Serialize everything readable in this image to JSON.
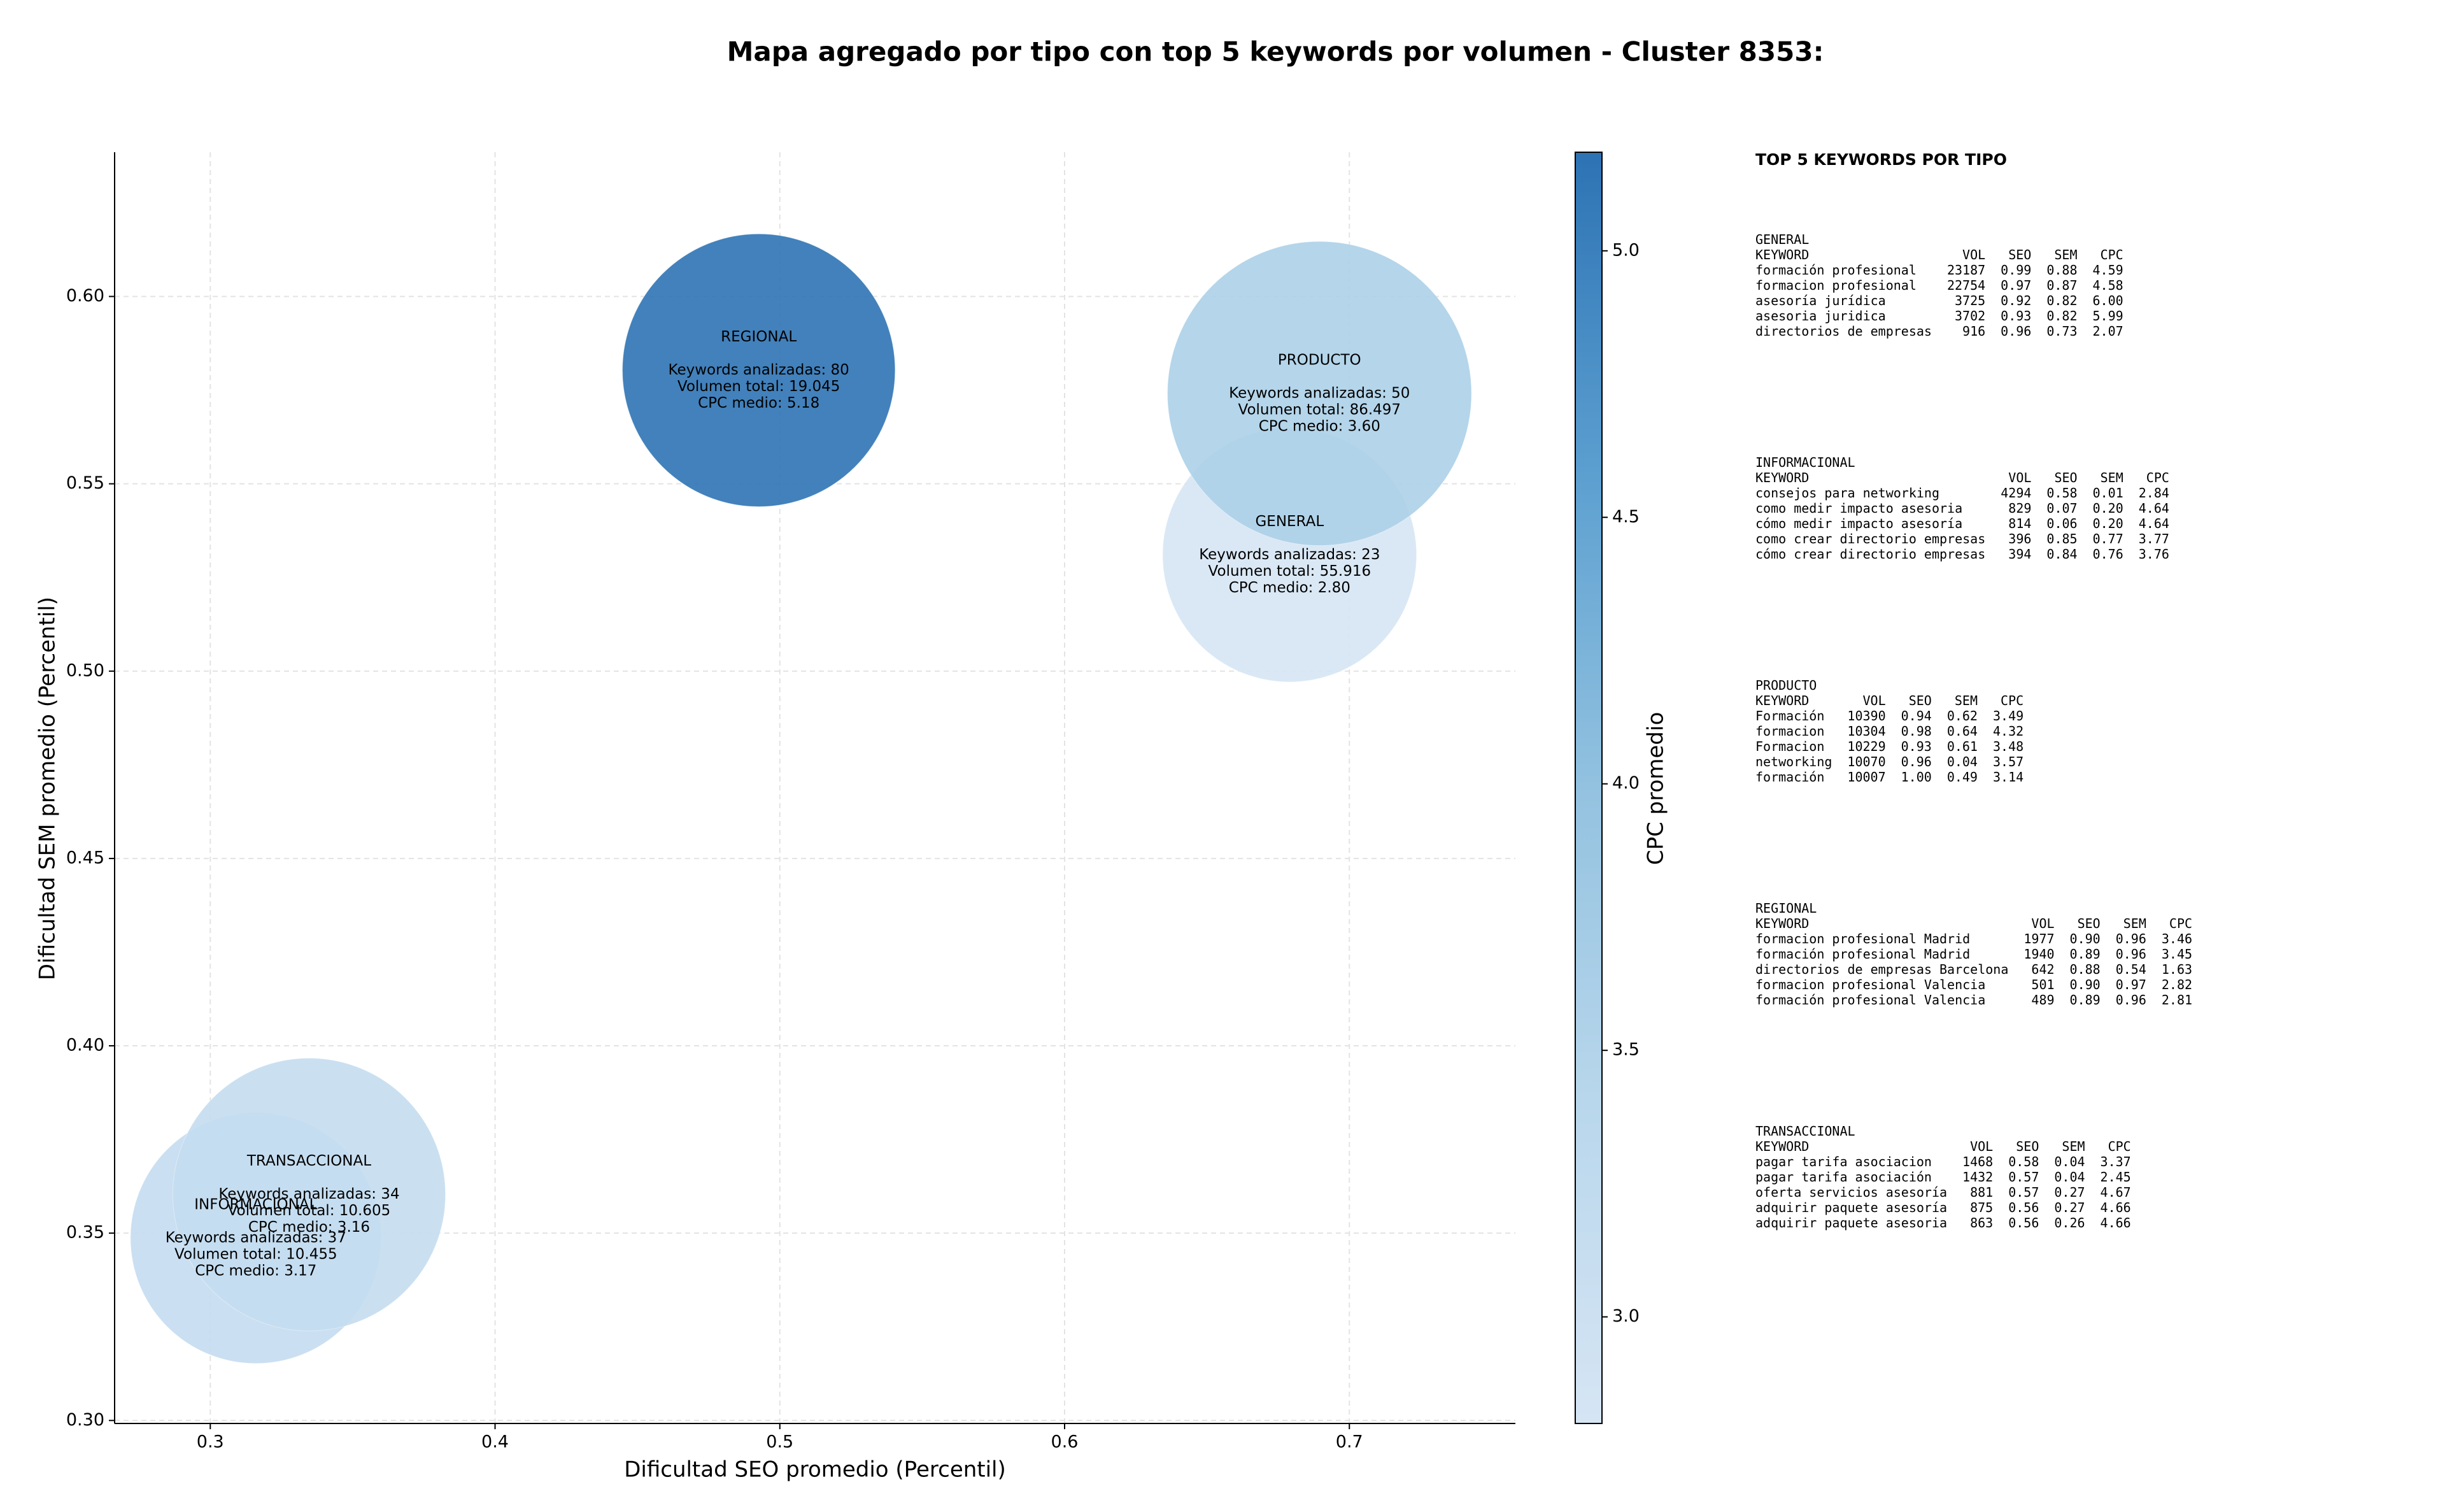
{
  "chart_data": {
    "type": "scatter",
    "title": "Mapa agregado por tipo con top 5 keywords por volumen - Cluster 8353:",
    "xlabel": "Dificultad SEO promedio (Percentil)",
    "ylabel": "Dificultad SEM promedio (Percentil)",
    "xlim": [
      0.2664,
      0.7583
    ],
    "ylim": [
      0.2992,
      0.6385
    ],
    "xticks": [
      {
        "value": 0.3,
        "label": "0.3"
      },
      0.4,
      0.5,
      0.6,
      0.7
    ],
    "yticks": [
      {
        "value": 0.3,
        "label": "0.30"
      },
      0.35,
      {
        "value": 0.4,
        "label": "0.40"
      },
      0.45,
      {
        "value": 0.5,
        "label": "0.50"
      },
      0.55,
      {
        "value": 0.6,
        "label": "0.60"
      }
    ],
    "grid": true,
    "labels": [
      "GENERAL",
      "INFORMACIONAL",
      "PRODUCTO",
      "REGIONAL",
      "TRANSACCIONAL"
    ],
    "x": [
      0.679,
      0.316,
      0.6895,
      0.4926,
      0.3347
    ],
    "y": [
      0.531,
      0.3487,
      0.5741,
      0.5803,
      0.3603
    ],
    "sizes": [
      6561,
      6400,
      9409,
      7569,
      7569
    ],
    "color_values": [
      2.8,
      3.17,
      3.6,
      5.18,
      3.16
    ],
    "annotations": [
      [
        "Keywords analizadas: 23",
        "Volumen total: 55.916",
        "CPC medio: 2.80"
      ],
      [
        "Keywords analizadas: 37",
        "Volumen total: 10.455",
        "CPC medio: 3.17"
      ],
      [
        "Keywords analizadas: 50",
        "Volumen total: 86.497",
        "CPC medio: 3.60"
      ],
      [
        "Keywords analizadas: 80",
        "Volumen total: 19.045",
        "CPC medio: 5.18"
      ],
      [
        "Keywords analizadas: 34",
        "Volumen total: 10.605",
        "CPC medio: 3.16"
      ]
    ],
    "colorbar": {
      "label": "CPC promedio",
      "lim": [
        2.8,
        5.185
      ],
      "ticks": [
        {
          "value": 3.0,
          "label": "3.0"
        },
        3.5,
        {
          "value": 4.0,
          "label": "4.0"
        },
        4.5,
        {
          "value": 5.0,
          "label": "5.0"
        }
      ],
      "colormap": [
        "#d6e5f4",
        "#b9d7ec",
        "#93c2e0",
        "#5b9fd0",
        "#2d73b4"
      ]
    }
  },
  "side_panel": {
    "title": "TOP 5 KEYWORDS POR TIPO",
    "tables": [
      {
        "name": "GENERAL",
        "columns": [
          "KEYWORD",
          "VOL",
          "SEO",
          "SEM",
          "CPC"
        ],
        "rows": [
          [
            "formación profesional",
            "23187",
            "0.99",
            "0.88",
            "4.59"
          ],
          [
            "formacion profesional",
            "22754",
            "0.97",
            "0.87",
            "4.58"
          ],
          [
            "asesoría jurídica",
            "3725",
            "0.92",
            "0.82",
            "6.00"
          ],
          [
            "asesoria juridica",
            "3702",
            "0.93",
            "0.82",
            "5.99"
          ],
          [
            "directorios de empresas",
            "916",
            "0.96",
            "0.73",
            "2.07"
          ]
        ]
      },
      {
        "name": "INFORMACIONAL",
        "columns": [
          "KEYWORD",
          "VOL",
          "SEO",
          "SEM",
          "CPC"
        ],
        "rows": [
          [
            "consejos para networking",
            "4294",
            "0.58",
            "0.01",
            "2.84"
          ],
          [
            "como medir impacto asesoria",
            "829",
            "0.07",
            "0.20",
            "4.64"
          ],
          [
            "cómo medir impacto asesoría",
            "814",
            "0.06",
            "0.20",
            "4.64"
          ],
          [
            "como crear directorio empresas",
            "396",
            "0.85",
            "0.77",
            "3.77"
          ],
          [
            "cómo crear directorio empresas",
            "394",
            "0.84",
            "0.76",
            "3.76"
          ]
        ]
      },
      {
        "name": "PRODUCTO",
        "columns": [
          "KEYWORD",
          "VOL",
          "SEO",
          "SEM",
          "CPC"
        ],
        "rows": [
          [
            "Formación",
            "10390",
            "0.94",
            "0.62",
            "3.49"
          ],
          [
            "formacion",
            "10304",
            "0.98",
            "0.64",
            "4.32"
          ],
          [
            "Formacion",
            "10229",
            "0.93",
            "0.61",
            "3.48"
          ],
          [
            "networking",
            "10070",
            "0.96",
            "0.04",
            "3.57"
          ],
          [
            "formación",
            "10007",
            "1.00",
            "0.49",
            "3.14"
          ]
        ]
      },
      {
        "name": "REGIONAL",
        "columns": [
          "KEYWORD",
          "VOL",
          "SEO",
          "SEM",
          "CPC"
        ],
        "rows": [
          [
            "formacion profesional Madrid",
            "1977",
            "0.90",
            "0.96",
            "3.46"
          ],
          [
            "formación profesional Madrid",
            "1940",
            "0.89",
            "0.96",
            "3.45"
          ],
          [
            "directorios de empresas Barcelona",
            "642",
            "0.88",
            "0.54",
            "1.63"
          ],
          [
            "formacion profesional Valencia",
            "501",
            "0.90",
            "0.97",
            "2.82"
          ],
          [
            "formación profesional Valencia",
            "489",
            "0.89",
            "0.96",
            "2.81"
          ]
        ]
      },
      {
        "name": "TRANSACCIONAL",
        "columns": [
          "KEYWORD",
          "VOL",
          "SEO",
          "SEM",
          "CPC"
        ],
        "rows": [
          [
            "pagar tarifa asociacion",
            "1468",
            "0.58",
            "0.04",
            "3.37"
          ],
          [
            "pagar tarifa asociación",
            "1432",
            "0.57",
            "0.04",
            "2.45"
          ],
          [
            "oferta servicios asesoría",
            "881",
            "0.57",
            "0.27",
            "4.67"
          ],
          [
            "adquirir paquete asesoría",
            "875",
            "0.56",
            "0.27",
            "4.66"
          ],
          [
            "adquirir paquete asesoria",
            "863",
            "0.56",
            "0.26",
            "4.66"
          ]
        ]
      }
    ]
  }
}
